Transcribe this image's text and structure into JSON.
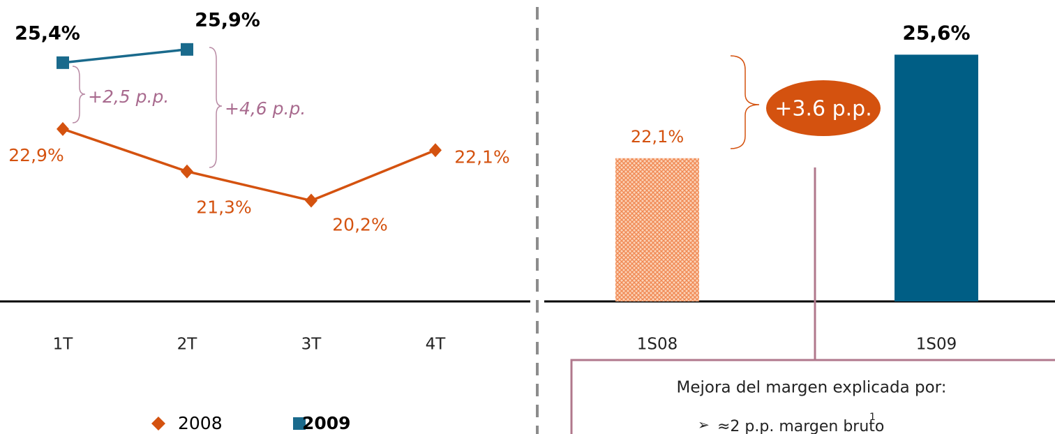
{
  "chart_data": [
    {
      "type": "line",
      "categories": [
        "1T",
        "2T",
        "3T",
        "4T"
      ],
      "series": [
        {
          "name": "2008",
          "color": "#d4520f",
          "values": [
            22.9,
            21.3,
            20.2,
            22.1
          ],
          "value_labels": [
            "22,9%",
            "21,3%",
            "20,2%",
            "22,1%"
          ]
        },
        {
          "name": "2009",
          "color": "#1a6a8c",
          "values": [
            25.4,
            25.9,
            null,
            null
          ],
          "value_labels": [
            "25,4%",
            "25,9%",
            null,
            null
          ]
        }
      ],
      "ylim": [
        16.4,
        27
      ],
      "annotations": [
        "+2,5 p.p.",
        "+4,6 p.p."
      ]
    },
    {
      "type": "bar",
      "categories": [
        "1S08",
        "1S09"
      ],
      "values": [
        22.1,
        25.6
      ],
      "value_labels": [
        "22,1%",
        "25,6%"
      ],
      "colors": [
        "#f08a55",
        "#005e85"
      ],
      "ylim": [
        17.26,
        27
      ],
      "annotations": [
        "+3.6 p.p."
      ],
      "note": {
        "title": "Mejora del margen explicada por:",
        "items": [
          "≈2 p.p. margen bruto"
        ],
        "footnote_mark": "1"
      }
    }
  ]
}
